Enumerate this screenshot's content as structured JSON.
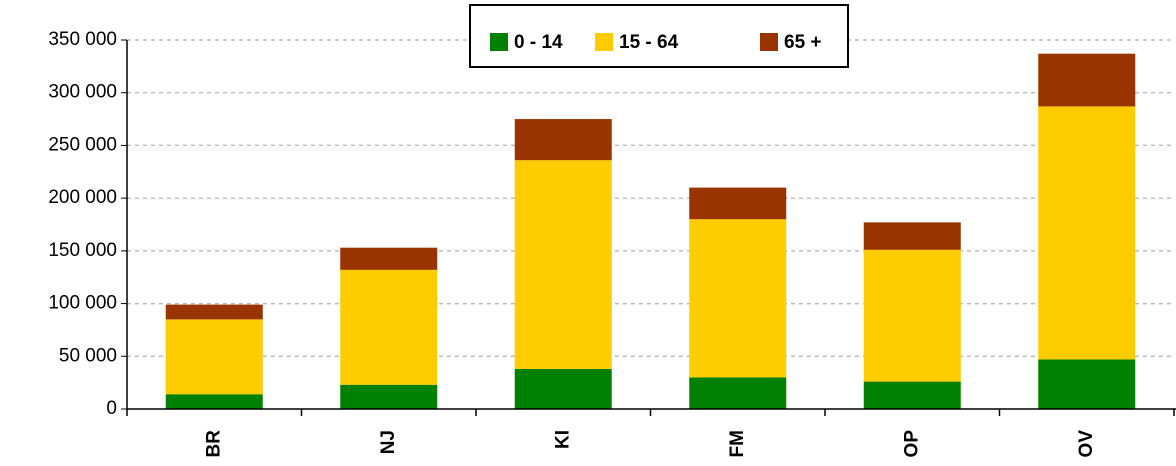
{
  "chart_data": {
    "type": "stacked_bar",
    "categories": [
      "BR",
      "NJ",
      "KI",
      "FM",
      "OP",
      "OV"
    ],
    "series": [
      {
        "name": "0 - 14",
        "color": "#008000",
        "values": [
          14000,
          23000,
          38000,
          30000,
          26000,
          47000
        ]
      },
      {
        "name": "15 - 64",
        "color": "#ffcc00",
        "values": [
          71000,
          109000,
          198000,
          150000,
          125000,
          240000
        ]
      },
      {
        "name": "65 +",
        "color": "#993300",
        "values": [
          14000,
          21000,
          39000,
          30000,
          26000,
          50000
        ]
      }
    ],
    "ylim": [
      0,
      350000
    ],
    "yticks": [
      0,
      {
        "value": 50000,
        "label": "50 000"
      },
      {
        "value": 100000,
        "label": "100 000"
      },
      {
        "value": 150000,
        "label": "150 000"
      },
      {
        "value": 200000,
        "label": "200 000"
      },
      {
        "value": 250000,
        "label": "250 000"
      },
      {
        "value": 300000,
        "label": "300 000"
      },
      {
        "value": 350000,
        "label": "350 000"
      }
    ],
    "grid": true,
    "legend": "top"
  }
}
